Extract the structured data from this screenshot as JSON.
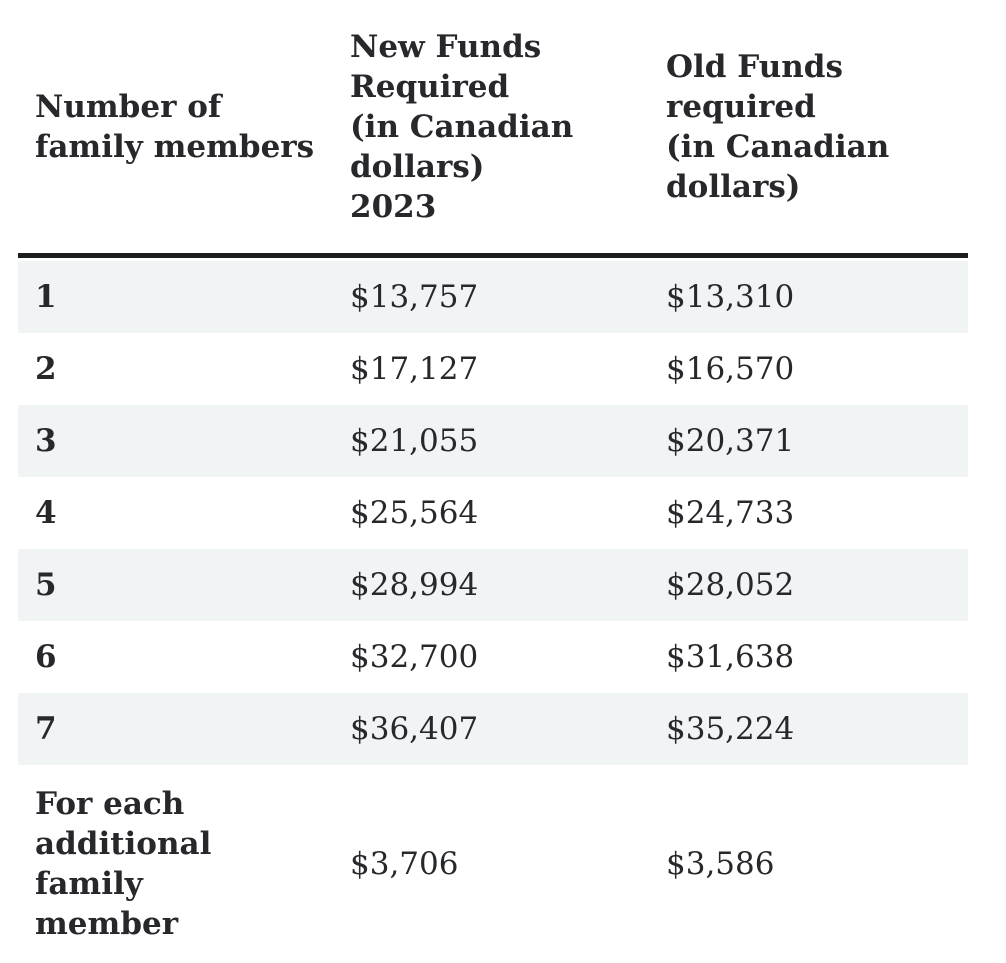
{
  "colors": {
    "background": "#ffffff",
    "text": "#26282b",
    "stripe": "#f0f4f5",
    "header_border": "#1b1d1f"
  },
  "table": {
    "header": [
      [
        "Number of",
        "family members"
      ],
      [
        "New Funds",
        "Required",
        "(in Canadian",
        "dollars)",
        "2023"
      ],
      [
        "Old Funds",
        "required",
        "(in Canadian",
        "dollars)"
      ]
    ],
    "rows": [
      {
        "cells": [
          [
            "1"
          ],
          "$13,757",
          "$13,310"
        ]
      },
      {
        "cells": [
          [
            "2"
          ],
          "$17,127",
          "$16,570"
        ]
      },
      {
        "cells": [
          [
            "3"
          ],
          "$21,055",
          "$20,371"
        ]
      },
      {
        "cells": [
          [
            "4"
          ],
          "$25,564",
          "$24,733"
        ]
      },
      {
        "cells": [
          [
            "5"
          ],
          "$28,994",
          "$28,052"
        ]
      },
      {
        "cells": [
          [
            "6"
          ],
          "$32,700",
          "$31,638"
        ]
      },
      {
        "cells": [
          [
            "7"
          ],
          "$36,407",
          "$35,224"
        ]
      },
      {
        "cells": [
          [
            "For each",
            "additional family",
            "member"
          ],
          "$3,706",
          "$3,586"
        ]
      }
    ]
  },
  "chart_data": {
    "type": "table",
    "columns": [
      "Number of family members",
      "New Funds Required (in Canadian dollars) 2023",
      "Old Funds required (in Canadian dollars)"
    ],
    "rows": [
      [
        "1",
        "$13,757",
        "$13,310"
      ],
      [
        "2",
        "$17,127",
        "$16,570"
      ],
      [
        "3",
        "$21,055",
        "$20,371"
      ],
      [
        "4",
        "$25,564",
        "$24,733"
      ],
      [
        "5",
        "$28,994",
        "$28,052"
      ],
      [
        "6",
        "$32,700",
        "$31,638"
      ],
      [
        "7",
        "$36,407",
        "$35,224"
      ],
      [
        "For each additional family member",
        "$3,706",
        "$3,586"
      ]
    ]
  }
}
